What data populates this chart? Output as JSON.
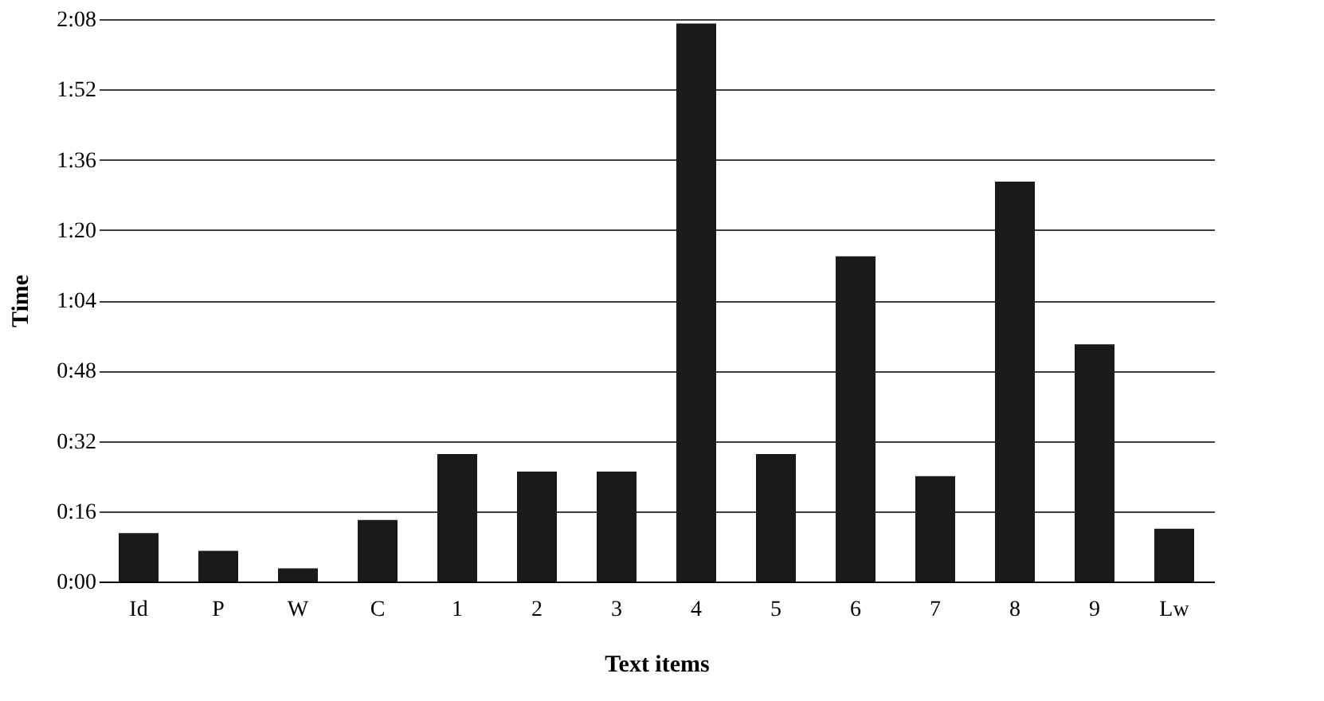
{
  "chart_data": {
    "type": "bar",
    "xlabel": "Text items",
    "ylabel": "Time",
    "categories": [
      "Id",
      "P",
      "W",
      "C",
      "1",
      "2",
      "3",
      "4",
      "5",
      "6",
      "7",
      "8",
      "9",
      "Lw"
    ],
    "values": [
      11,
      7,
      3,
      14,
      29,
      25,
      25,
      127,
      29,
      74,
      24,
      91,
      54,
      12
    ],
    "color": "#1a1a1a",
    "ylim": [
      0,
      128
    ],
    "yticks": [
      {
        "value": 0,
        "label": "0:00"
      },
      {
        "value": 16,
        "label": "0:16"
      },
      {
        "value": 32,
        "label": "0:32"
      },
      {
        "value": 48,
        "label": "0:48"
      },
      {
        "value": 64,
        "label": "1:04"
      },
      {
        "value": 80,
        "label": "1:20"
      },
      {
        "value": 96,
        "label": "1:36"
      },
      {
        "value": 112,
        "label": "1:52"
      },
      {
        "value": 128,
        "label": "2:08"
      }
    ],
    "grid": "y"
  }
}
